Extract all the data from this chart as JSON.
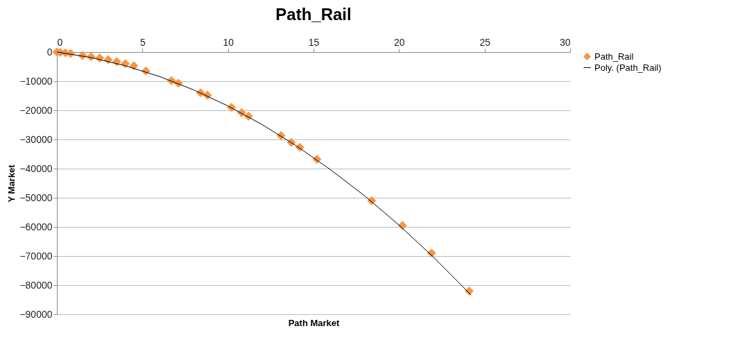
{
  "chart_data": {
    "type": "scatter",
    "title": "Path_Rail",
    "xlabel": "Path Market",
    "ylabel": "Y Market",
    "xlim": [
      0,
      30
    ],
    "xticks": [
      0,
      5,
      10,
      15,
      20,
      25,
      30
    ],
    "ylim": [
      -90000,
      0
    ],
    "yticks": [
      -90000,
      -80000,
      -70000,
      -60000,
      -50000,
      -40000,
      -30000,
      -20000,
      -10000,
      0
    ],
    "grid": "y",
    "legend": "right",
    "series": [
      {
        "name": "Path_Rail",
        "color": "#f79646",
        "marker": "diamond",
        "x": [
          0,
          0.2,
          0.5,
          0.8,
          1.5,
          2,
          2.5,
          3,
          3.5,
          4,
          4.5,
          5.2,
          6.7,
          7.1,
          8.4,
          8.8,
          10.2,
          10.8,
          11.2,
          13.1,
          13.7,
          14.2,
          15.2,
          18.4,
          20.2,
          21.9,
          24.1
        ],
        "values": [
          0,
          -100,
          -300,
          -500,
          -1200,
          -1600,
          -2000,
          -2600,
          -3300,
          -4000,
          -4700,
          -6500,
          -9800,
          -10700,
          -14000,
          -14800,
          -19000,
          -20800,
          -22000,
          -28700,
          -31000,
          -32700,
          -36800,
          -51000,
          -59500,
          -69000,
          -82000
        ]
      },
      {
        "name": "Poly. (Path_Rail)",
        "type": "line",
        "color": "#000000",
        "marker": "none",
        "line_style": "solid",
        "x": [
          0,
          2,
          4,
          6,
          8,
          10,
          12,
          14,
          16,
          18,
          20,
          22,
          24.2
        ],
        "values": [
          0,
          -1900,
          -4700,
          -8400,
          -13000,
          -18500,
          -24900,
          -32200,
          -40400,
          -49400,
          -59400,
          -70300,
          -83300
        ]
      }
    ]
  }
}
